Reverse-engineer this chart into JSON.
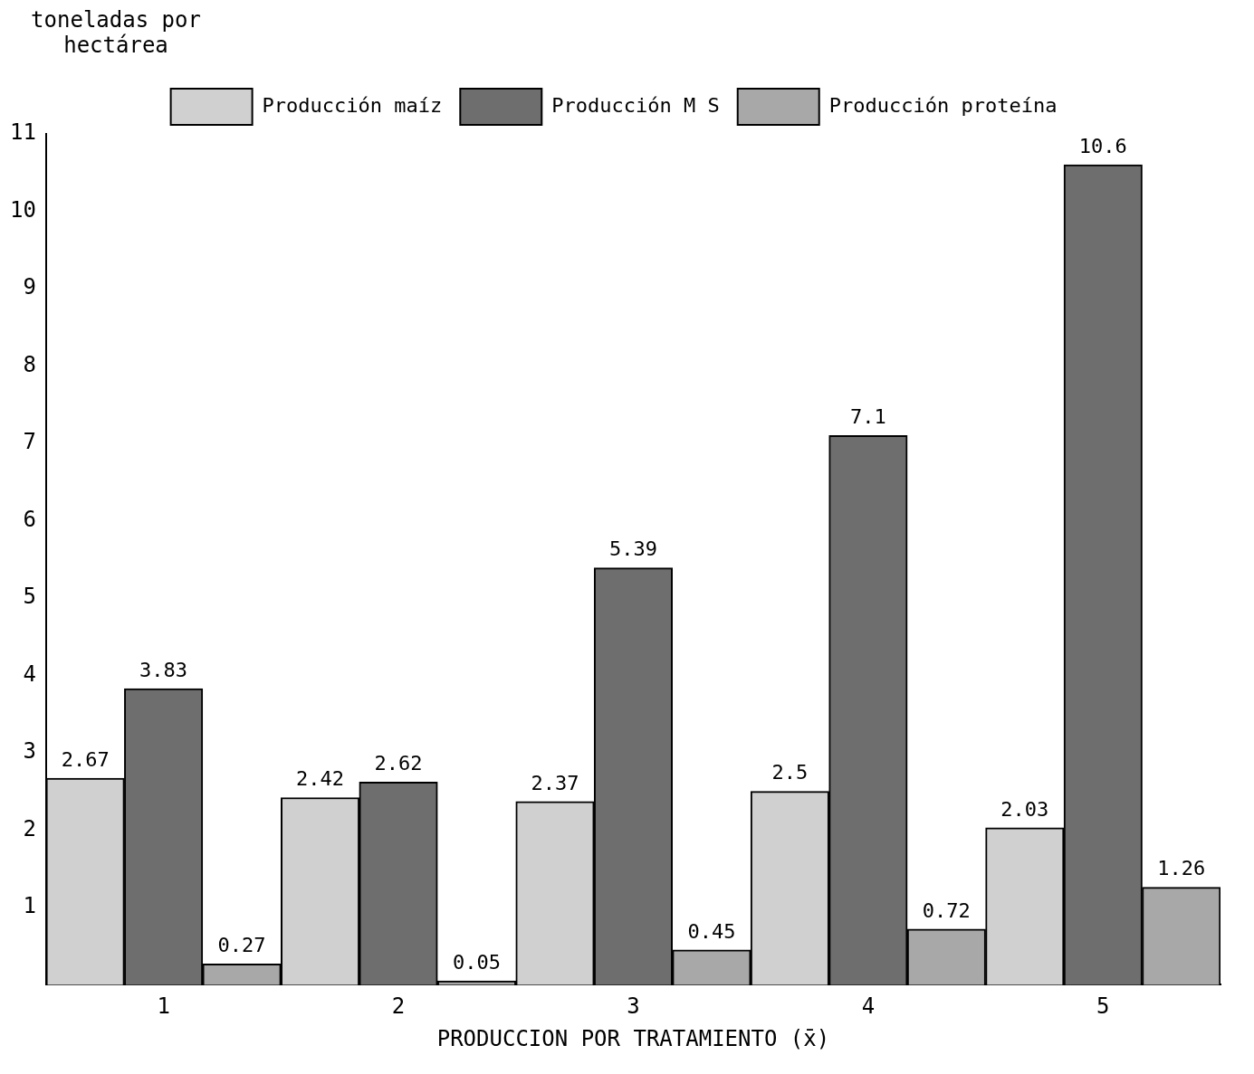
{
  "chart_data": {
    "type": "bar",
    "xlabel": "PRODUCCION POR TRATAMIENTO (x̄)",
    "ylabel": "toneladas por hectárea",
    "categories": [
      "1",
      "2",
      "3",
      "4",
      "5"
    ],
    "series": [
      {
        "name": "Producción maíz",
        "color": "#d0d0d0",
        "values": [
          2.67,
          2.42,
          2.37,
          2.5,
          2.03
        ]
      },
      {
        "name": "Producción M S",
        "color": "#6e6e6e",
        "values": [
          3.83,
          2.62,
          5.39,
          7.1,
          10.6
        ]
      },
      {
        "name": "Producción proteína",
        "color": "#a8a8a8",
        "values": [
          0.27,
          0.05,
          0.45,
          0.72,
          1.26
        ]
      }
    ],
    "ylim": [
      0,
      11
    ],
    "yticks": [
      1,
      2,
      3,
      4,
      5,
      6,
      7,
      8,
      9,
      10,
      11
    ],
    "data_labels": true,
    "grid": false,
    "legend": "top"
  }
}
